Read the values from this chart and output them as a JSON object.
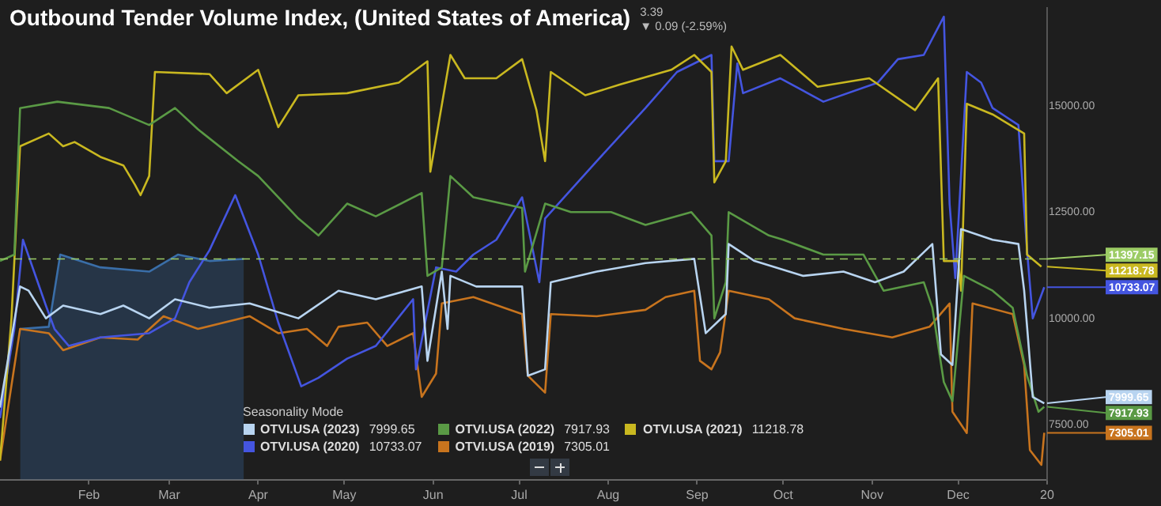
{
  "chart_data": {
    "type": "line",
    "title": "Outbound Tender Volume Index, (United States of America)",
    "legend_title": "Seasonality Mode",
    "legend": "bottom",
    "marker": "none",
    "line_style": "solid",
    "annotations": [
      "3.39",
      "▼ 0.09 (-2.59%)"
    ],
    "xlim": [
      "2019-01-01",
      "2020-01-01"
    ],
    "xticks": [
      {
        "value": "2019-02-01",
        "label": "Feb"
      },
      {
        "value": "2019-03-01",
        "label": "Mar"
      },
      {
        "value": "2019-04-01",
        "label": "Apr"
      },
      {
        "value": "2019-05-01",
        "label": "May"
      },
      {
        "value": "2019-06-01",
        "label": "Jun"
      },
      {
        "value": "2019-07-01",
        "label": "Jul"
      },
      {
        "value": "2019-08-01",
        "label": "Aug"
      },
      {
        "value": "2019-09-01",
        "label": "Sep"
      },
      {
        "value": "2019-10-01",
        "label": "Oct"
      },
      {
        "value": "2019-11-01",
        "label": "Nov"
      },
      {
        "value": "2019-12-01",
        "label": "Dec"
      },
      {
        "value": "2020-01-01",
        "label": "20"
      }
    ],
    "ylim": [
      6200,
      17300
    ],
    "yticks": [
      {
        "value": 7500,
        "label": "7500.00"
      },
      {
        "value": 10000,
        "label": "10000.00"
      },
      {
        "value": 12500,
        "label": "12500.00"
      },
      {
        "value": 15000,
        "label": "15000.00"
      }
    ],
    "ref_lines": [
      {
        "axis": "y",
        "value": 11397.15,
        "label": "11397.15",
        "color": "#9ccc65",
        "line_style": "dashed"
      }
    ],
    "series": [
      {
        "type": "area",
        "color": "#3a6ea8",
        "x": [
          "2019-01-08",
          "2019-01-18",
          "2019-01-22",
          "2019-02-05",
          "2019-02-22",
          "2019-03-04",
          "2019-03-15",
          "2019-03-27"
        ],
        "values": [
          9750,
          9800,
          11500,
          11200,
          11100,
          11500,
          11350,
          11397.15
        ]
      },
      {
        "name": "OTVI.USA (2023)",
        "color": "#b8d4f0",
        "x": [
          "2019-01-01",
          "2019-01-08",
          "2019-01-11",
          "2019-01-17",
          "2019-01-23",
          "2019-02-05",
          "2019-02-13",
          "2019-02-22",
          "2019-03-03",
          "2019-03-15",
          "2019-03-29",
          "2019-04-15",
          "2019-04-29",
          "2019-05-12",
          "2019-05-28",
          "2019-05-30",
          "2019-06-04",
          "2019-06-06",
          "2019-06-07",
          "2019-06-16",
          "2019-07-02",
          "2019-07-04",
          "2019-07-10",
          "2019-07-12",
          "2019-07-28",
          "2019-08-14",
          "2019-08-31",
          "2019-09-04",
          "2019-09-11",
          "2019-09-12",
          "2019-09-21",
          "2019-10-08",
          "2019-10-22",
          "2019-11-02",
          "2019-11-12",
          "2019-11-22",
          "2019-11-25",
          "2019-11-29",
          "2019-12-02",
          "2019-12-13",
          "2019-12-22",
          "2019-12-24",
          "2019-12-27",
          "2019-12-31"
        ],
        "values": [
          7900,
          10750,
          10650,
          10000,
          10300,
          10100,
          10300,
          10000,
          10450,
          10250,
          10350,
          10000,
          10650,
          10450,
          10750,
          9000,
          11100,
          9750,
          11000,
          10750,
          10750,
          8650,
          8800,
          10850,
          11100,
          11300,
          11400,
          9650,
          10100,
          11750,
          11350,
          11000,
          11100,
          10850,
          11100,
          11750,
          9150,
          8900,
          12100,
          11850,
          11750,
          10650,
          8150,
          7999.65
        ],
        "value_labels": [
          null,
          null,
          null,
          null,
          null,
          null,
          null,
          null,
          null,
          null,
          null,
          null,
          null,
          null,
          null,
          null,
          null,
          null,
          null,
          null,
          null,
          null,
          null,
          null,
          null,
          null,
          null,
          null,
          null,
          null,
          null,
          null,
          null,
          null,
          null,
          null,
          null,
          null,
          null,
          null,
          null,
          null,
          null,
          "7999.65"
        ]
      },
      {
        "name": "OTVI.USA (2022)",
        "color": "#5a9a45",
        "x": [
          "2019-01-01",
          "2019-01-06",
          "2019-01-08",
          "2019-01-21",
          "2019-02-08",
          "2019-02-22",
          "2019-03-03",
          "2019-03-11",
          "2019-03-25",
          "2019-04-01",
          "2019-04-15",
          "2019-04-22",
          "2019-05-02",
          "2019-05-12",
          "2019-05-28",
          "2019-05-30",
          "2019-06-04",
          "2019-06-07",
          "2019-06-15",
          "2019-07-02",
          "2019-07-03",
          "2019-07-10",
          "2019-07-19",
          "2019-08-02",
          "2019-08-14",
          "2019-08-30",
          "2019-09-06",
          "2019-09-07",
          "2019-09-11",
          "2019-09-12",
          "2019-09-26",
          "2019-10-01",
          "2019-10-15",
          "2019-10-29",
          "2019-11-05",
          "2019-11-19",
          "2019-11-22",
          "2019-11-26",
          "2019-11-29",
          "2019-12-03",
          "2019-12-13",
          "2019-12-20",
          "2019-12-25",
          "2019-12-29",
          "2019-12-31"
        ],
        "values": [
          11350,
          11500,
          14950,
          15100,
          14950,
          14550,
          14950,
          14450,
          13700,
          13350,
          12350,
          11950,
          12700,
          12400,
          12950,
          11000,
          11200,
          13350,
          12850,
          12600,
          11100,
          12700,
          12500,
          12500,
          12200,
          12500,
          11950,
          10000,
          10850,
          12500,
          11950,
          11850,
          11500,
          11500,
          10650,
          10850,
          10250,
          8500,
          8050,
          11000,
          10650,
          10250,
          8650,
          7800,
          7917.93
        ],
        "value_labels": [
          null,
          null,
          null,
          null,
          null,
          null,
          null,
          null,
          null,
          null,
          null,
          null,
          null,
          null,
          null,
          null,
          null,
          null,
          null,
          null,
          null,
          null,
          null,
          null,
          null,
          null,
          null,
          null,
          null,
          null,
          null,
          null,
          null,
          null,
          null,
          null,
          null,
          null,
          null,
          null,
          null,
          null,
          null,
          null,
          "7917.93"
        ]
      },
      {
        "name": "OTVI.USA (2021)",
        "color": "#c9b820",
        "x": [
          "2019-01-01",
          "2019-01-05",
          "2019-01-08",
          "2019-01-18",
          "2019-01-23",
          "2019-01-27",
          "2019-02-05",
          "2019-02-13",
          "2019-02-17",
          "2019-02-19",
          "2019-02-22",
          "2019-02-24",
          "2019-03-15",
          "2019-03-21",
          "2019-04-01",
          "2019-04-08",
          "2019-04-15",
          "2019-05-02",
          "2019-05-20",
          "2019-05-30",
          "2019-05-31",
          "2019-06-07",
          "2019-06-12",
          "2019-06-23",
          "2019-07-02",
          "2019-07-07",
          "2019-07-10",
          "2019-07-12",
          "2019-07-24",
          "2019-08-05",
          "2019-08-23",
          "2019-08-31",
          "2019-09-06",
          "2019-09-07",
          "2019-09-11",
          "2019-09-13",
          "2019-09-17",
          "2019-09-30",
          "2019-10-13",
          "2019-10-31",
          "2019-11-16",
          "2019-11-24",
          "2019-11-26",
          "2019-12-01",
          "2019-12-02",
          "2019-12-04",
          "2019-12-13",
          "2019-12-24",
          "2019-12-25",
          "2019-12-30"
        ],
        "values": [
          6650,
          10000,
          14050,
          14350,
          14050,
          14150,
          13800,
          13600,
          13150,
          12900,
          13350,
          15800,
          15750,
          15300,
          15850,
          14500,
          15250,
          15300,
          15550,
          16050,
          13450,
          16200,
          15650,
          15650,
          16100,
          14900,
          13700,
          15800,
          15250,
          15500,
          15850,
          16200,
          15800,
          13200,
          13700,
          16400,
          15850,
          16200,
          15450,
          15650,
          14900,
          15650,
          11350,
          11350,
          10650,
          15050,
          14800,
          14350,
          11500,
          11218.78
        ],
        "value_labels": [
          null,
          null,
          null,
          null,
          null,
          null,
          null,
          null,
          null,
          null,
          null,
          null,
          null,
          null,
          null,
          null,
          null,
          null,
          null,
          null,
          null,
          null,
          null,
          null,
          null,
          null,
          null,
          null,
          null,
          null,
          null,
          null,
          null,
          null,
          null,
          null,
          null,
          null,
          null,
          null,
          null,
          null,
          null,
          null,
          null,
          null,
          null,
          null,
          null,
          "11218.78"
        ]
      },
      {
        "name": "OTVI.USA (2020)",
        "color": "#4455e0",
        "x": [
          "2019-01-01",
          "2019-01-06",
          "2019-01-09",
          "2019-01-17",
          "2019-01-20",
          "2019-01-25",
          "2019-02-05",
          "2019-02-22",
          "2019-03-03",
          "2019-03-08",
          "2019-03-15",
          "2019-03-24",
          "2019-04-01",
          "2019-04-08",
          "2019-04-16",
          "2019-04-22",
          "2019-05-02",
          "2019-05-12",
          "2019-05-25",
          "2019-05-26",
          "2019-06-02",
          "2019-06-09",
          "2019-06-15",
          "2019-06-23",
          "2019-07-02",
          "2019-07-08",
          "2019-07-10",
          "2019-07-28",
          "2019-08-14",
          "2019-08-25",
          "2019-09-06",
          "2019-09-07",
          "2019-09-12",
          "2019-09-15",
          "2019-09-17",
          "2019-09-30",
          "2019-10-15",
          "2019-11-03",
          "2019-11-10",
          "2019-11-19",
          "2019-11-26",
          "2019-11-28",
          "2019-11-30",
          "2019-12-04",
          "2019-12-09",
          "2019-12-13",
          "2019-12-22",
          "2019-12-25",
          "2019-12-27",
          "2019-12-31"
        ],
        "values": [
          7650,
          9750,
          11850,
          10300,
          9750,
          9350,
          9550,
          9650,
          10000,
          10850,
          11600,
          12900,
          11500,
          9900,
          8400,
          8600,
          9050,
          9350,
          10450,
          8800,
          11200,
          11100,
          11500,
          11850,
          12850,
          10850,
          12350,
          13700,
          14950,
          15800,
          16200,
          13700,
          13700,
          16000,
          15300,
          15650,
          15100,
          15550,
          16100,
          16200,
          17100,
          12700,
          10950,
          15800,
          15550,
          14950,
          14550,
          11600,
          10000,
          10733.07
        ],
        "value_labels": [
          null,
          null,
          null,
          null,
          null,
          null,
          null,
          null,
          null,
          null,
          null,
          null,
          null,
          null,
          null,
          null,
          null,
          null,
          null,
          null,
          null,
          null,
          null,
          null,
          null,
          null,
          null,
          null,
          null,
          null,
          null,
          null,
          null,
          null,
          null,
          null,
          null,
          null,
          null,
          null,
          null,
          null,
          null,
          null,
          null,
          null,
          null,
          null,
          null,
          "10733.07"
        ]
      },
      {
        "name": "OTVI.USA (2019)",
        "color": "#c8741e",
        "x": [
          "2019-01-01",
          "2019-01-08",
          "2019-01-18",
          "2019-01-23",
          "2019-02-05",
          "2019-02-18",
          "2019-02-27",
          "2019-03-11",
          "2019-03-29",
          "2019-04-08",
          "2019-04-18",
          "2019-04-25",
          "2019-04-29",
          "2019-05-09",
          "2019-05-16",
          "2019-05-25",
          "2019-05-28",
          "2019-06-02",
          "2019-06-04",
          "2019-06-15",
          "2019-07-02",
          "2019-07-04",
          "2019-07-10",
          "2019-07-12",
          "2019-07-28",
          "2019-08-14",
          "2019-08-21",
          "2019-08-31",
          "2019-09-02",
          "2019-09-06",
          "2019-09-09",
          "2019-09-12",
          "2019-09-26",
          "2019-10-05",
          "2019-10-22",
          "2019-11-08",
          "2019-11-21",
          "2019-11-28",
          "2019-11-29",
          "2019-12-04",
          "2019-12-06",
          "2019-12-20",
          "2019-12-24",
          "2019-12-26",
          "2019-12-30",
          "2019-12-31"
        ],
        "values": [
          6650,
          9750,
          9650,
          9250,
          9550,
          9500,
          10050,
          9750,
          10050,
          9650,
          9750,
          9350,
          9800,
          9900,
          9350,
          9650,
          8150,
          8700,
          10350,
          10500,
          10100,
          8650,
          8250,
          10100,
          10050,
          10200,
          10500,
          10650,
          9000,
          8800,
          9200,
          10650,
          10450,
          10000,
          9750,
          9550,
          9800,
          10350,
          7800,
          7300,
          10350,
          10100,
          8900,
          6900,
          6550,
          7305.01
        ],
        "value_labels": [
          null,
          null,
          null,
          null,
          null,
          null,
          null,
          null,
          null,
          null,
          null,
          null,
          null,
          null,
          null,
          null,
          null,
          null,
          null,
          null,
          null,
          null,
          null,
          null,
          null,
          null,
          null,
          null,
          null,
          null,
          null,
          null,
          null,
          null,
          null,
          null,
          null,
          null,
          null,
          null,
          null,
          null,
          null,
          null,
          null,
          "7305.01"
        ]
      }
    ]
  }
}
